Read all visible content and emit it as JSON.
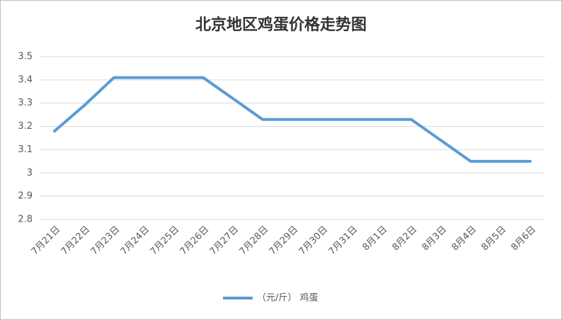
{
  "chart_data": {
    "type": "line",
    "title": "北京地区鸡蛋价格走势图",
    "categories": [
      "7月21日",
      "7月22日",
      "7月23日",
      "7月24日",
      "7月25日",
      "7月26日",
      "7月27日",
      "7月28日",
      "7月29日",
      "7月30日",
      "7月31日",
      "8月1日",
      "8月2日",
      "8月3日",
      "8月4日",
      "8月5日",
      "8月6日"
    ],
    "series": [
      {
        "name": "（元/斤） 鸡蛋",
        "color": "#5b9bd5",
        "values": [
          3.18,
          3.29,
          3.41,
          3.41,
          3.41,
          3.41,
          3.32,
          3.23,
          3.23,
          3.23,
          3.23,
          3.23,
          3.23,
          3.14,
          3.05,
          3.05,
          3.05
        ]
      }
    ],
    "ylim": [
      2.8,
      3.5
    ],
    "yticks": [
      2.8,
      2.9,
      3,
      3.1,
      3.2,
      3.3,
      3.4,
      3.5
    ],
    "grid": true,
    "legend": "bottom"
  }
}
